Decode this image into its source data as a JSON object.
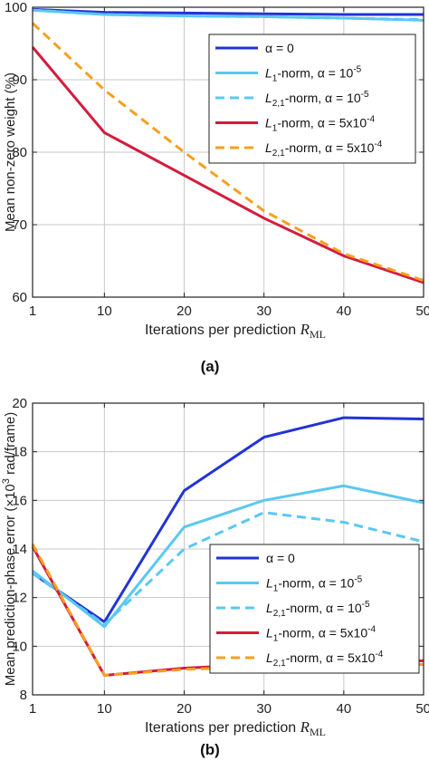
{
  "figure": {
    "panels": [
      {
        "caption": "(a)"
      },
      {
        "caption": "(b)"
      }
    ]
  },
  "legend_labels": [
    {
      "pre": "α = 0",
      "sub": "",
      "mid": "",
      "sup": ""
    },
    {
      "pre": "L",
      "sub": "1",
      "mid": "-norm, α = 10",
      "sup": "-5"
    },
    {
      "pre": "L",
      "sub": "2,1",
      "mid": "-norm, α = 10",
      "sup": "-5"
    },
    {
      "pre": "L",
      "sub": "1",
      "mid": "-norm, α = 5x10",
      "sup": "-4"
    },
    {
      "pre": "L",
      "sub": "2,1",
      "mid": "-norm, α = 5x10",
      "sup": "-4"
    }
  ],
  "styles": {
    "series_colors": [
      "#2233d6",
      "#5ac8f0",
      "#5ac8f0",
      "#d41c3c",
      "#f5a020"
    ],
    "series_dash": [
      "solid",
      "solid",
      "dashed",
      "solid",
      "dashed"
    ],
    "grid_color": "#c8c8c8",
    "axis_color": "#222222"
  },
  "chart_data": [
    {
      "type": "line",
      "title": "",
      "xlabel": {
        "text": "Iterations per prediction ",
        "math_main": "R",
        "math_sub": "ML"
      },
      "ylabel": {
        "pre": "Mean non-zero weight (%)",
        "sup": "",
        "post": ""
      },
      "x": [
        1,
        10,
        20,
        30,
        40,
        50
      ],
      "xticks": [
        1,
        10,
        20,
        30,
        40,
        50
      ],
      "xtick_labels": [
        "1",
        "10",
        "20",
        "30",
        "40",
        "50"
      ],
      "xlim": [
        1,
        50
      ],
      "yticks": [
        60,
        70,
        80,
        90,
        100
      ],
      "ytick_labels": [
        "60",
        "70",
        "80",
        "90",
        "100"
      ],
      "ylim": [
        60,
        100
      ],
      "grid": true,
      "legend_position": "top-right",
      "series": [
        {
          "legend_index": 0,
          "values": [
            99.7,
            99.3,
            99.2,
            99.1,
            99.0,
            99.0
          ]
        },
        {
          "legend_index": 1,
          "values": [
            99.6,
            99.0,
            98.8,
            98.7,
            98.5,
            98.2
          ]
        },
        {
          "legend_index": 2,
          "values": [
            99.6,
            99.0,
            98.8,
            98.7,
            98.5,
            98.3
          ]
        },
        {
          "legend_index": 3,
          "values": [
            94.5,
            82.7,
            76.8,
            70.9,
            65.7,
            62.0
          ]
        },
        {
          "legend_index": 4,
          "values": [
            97.8,
            88.6,
            80.0,
            71.9,
            66.0,
            62.3
          ]
        }
      ]
    },
    {
      "type": "line",
      "title": "",
      "xlabel": {
        "text": "Iterations per prediction ",
        "math_main": "R",
        "math_sub": "ML"
      },
      "ylabel": {
        "pre": "Mean prediction-phase error (×10",
        "sup": "3",
        "post": " rad/frame)"
      },
      "x": [
        1,
        10,
        20,
        30,
        40,
        50
      ],
      "xticks": [
        1,
        10,
        20,
        30,
        40,
        50
      ],
      "xtick_labels": [
        "1",
        "10",
        "20",
        "30",
        "40",
        "50"
      ],
      "xlim": [
        1,
        50
      ],
      "yticks": [
        8,
        10,
        12,
        14,
        16,
        18,
        20
      ],
      "ytick_labels": [
        "8",
        "10",
        "12",
        "14",
        "16",
        "18",
        "20"
      ],
      "ylim": [
        8,
        20
      ],
      "grid": true,
      "legend_position": "lower-right",
      "series": [
        {
          "legend_index": 0,
          "values": [
            13.0,
            11.0,
            16.4,
            18.6,
            19.4,
            19.35
          ]
        },
        {
          "legend_index": 1,
          "values": [
            13.1,
            10.8,
            14.9,
            16.0,
            16.6,
            15.9
          ]
        },
        {
          "legend_index": 2,
          "values": [
            13.0,
            10.9,
            14.0,
            15.5,
            15.1,
            14.3
          ]
        },
        {
          "legend_index": 3,
          "values": [
            14.1,
            8.8,
            9.1,
            9.25,
            9.35,
            9.4
          ]
        },
        {
          "legend_index": 4,
          "values": [
            14.2,
            8.8,
            9.05,
            9.15,
            9.25,
            9.25
          ]
        }
      ]
    }
  ]
}
